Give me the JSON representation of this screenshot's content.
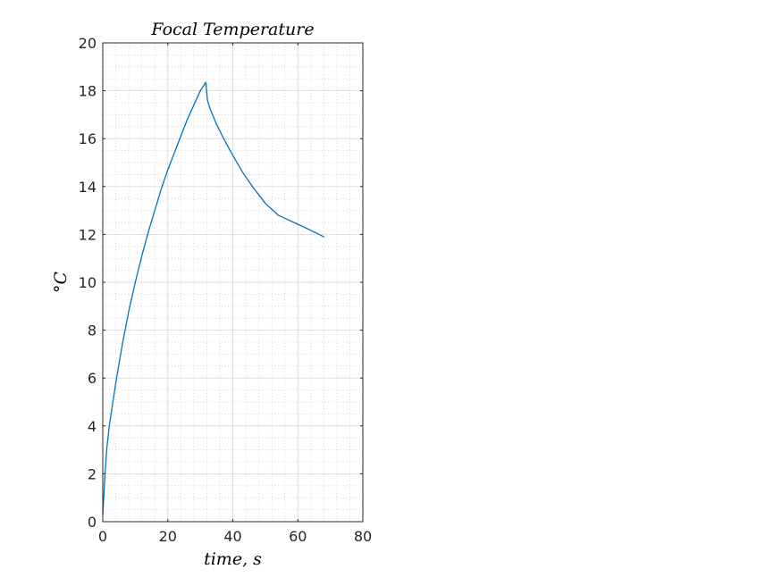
{
  "chart_data": {
    "type": "line",
    "title": "Focal Temperature",
    "xlabel": "time, s",
    "ylabel": "°C",
    "xlim": [
      0,
      80
    ],
    "ylim": [
      0,
      20
    ],
    "xticks": [
      0,
      20,
      40,
      60,
      80
    ],
    "yticks": [
      0,
      2,
      4,
      6,
      8,
      10,
      12,
      14,
      16,
      18,
      20
    ],
    "xtick_labels": [
      "0",
      "20",
      "40",
      "60",
      "80"
    ],
    "ytick_labels": [
      "0",
      "2",
      "4",
      "6",
      "8",
      "10",
      "12",
      "14",
      "16",
      "18",
      "20"
    ],
    "grid": true,
    "minor_grid": true,
    "series": [
      {
        "color": "#0072bd",
        "x": [
          0,
          0.3,
          0.7,
          1.2,
          2,
          3,
          4,
          5,
          6,
          8,
          10,
          12,
          14,
          16,
          18,
          20,
          22,
          24,
          26,
          28,
          30,
          31.7,
          32.2,
          33,
          35,
          37,
          40,
          43,
          46,
          50,
          54,
          58,
          62,
          65,
          68
        ],
        "y": [
          0.3,
          1.0,
          2.0,
          3.0,
          4.0,
          4.9,
          5.8,
          6.6,
          7.4,
          8.8,
          10.0,
          11.1,
          12.1,
          13.0,
          13.9,
          14.7,
          15.4,
          16.1,
          16.8,
          17.4,
          18.0,
          18.35,
          17.6,
          17.25,
          16.6,
          16.05,
          15.3,
          14.6,
          14.0,
          13.3,
          12.8,
          12.55,
          12.3,
          12.1,
          11.9
        ]
      }
    ]
  }
}
